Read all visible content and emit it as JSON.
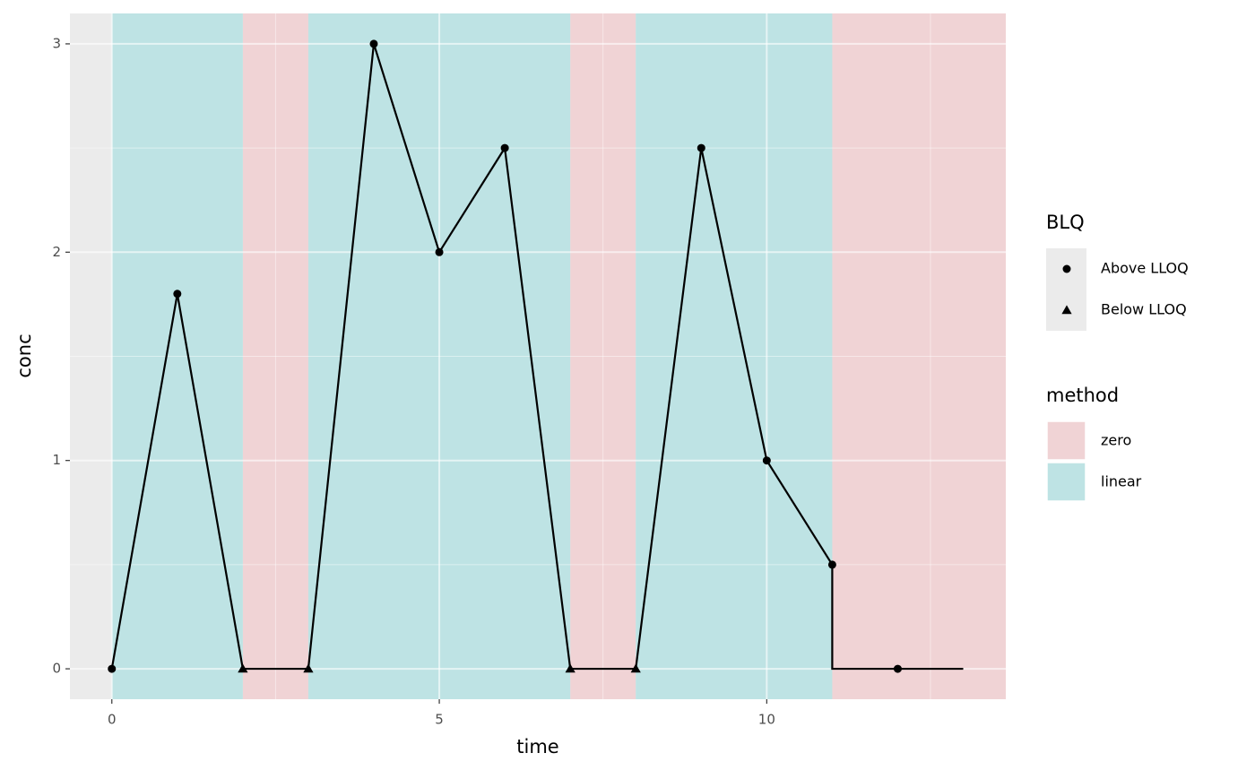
{
  "chart_data": {
    "type": "line",
    "xlabel": "time",
    "ylabel": "conc",
    "xlim": [
      -0.64,
      13.65
    ],
    "ylim": [
      -0.146,
      3.146
    ],
    "xticks": [
      0,
      5,
      10
    ],
    "yticks": [
      0,
      1,
      2,
      3
    ],
    "x_minor_ticks": [
      2.5,
      7.5,
      12.5
    ],
    "y_minor_ticks": [
      0.5,
      1.5,
      2.5
    ],
    "grid": true,
    "line": {
      "color": "#000000",
      "x": [
        0,
        1,
        2,
        3,
        4,
        5,
        6,
        7,
        8,
        9,
        10,
        11,
        11,
        12,
        13
      ],
      "values": [
        0,
        1.8,
        0,
        0,
        3,
        2,
        2.5,
        0,
        0,
        2.5,
        1,
        0.5,
        0,
        0,
        0
      ]
    },
    "shape_legend": {
      "title": "BLQ",
      "series": [
        {
          "name": "Above LLOQ",
          "shape": "circle",
          "color": "#000000",
          "x": [
            0,
            1,
            4,
            5,
            6,
            9,
            10,
            11,
            12
          ],
          "values": [
            0,
            1.8,
            3,
            2,
            2.5,
            2.5,
            1,
            0.5,
            0
          ]
        },
        {
          "name": "Below LLOQ",
          "shape": "triangle",
          "color": "#000000",
          "x": [
            2,
            3,
            7,
            8
          ],
          "values": [
            0,
            0,
            0,
            0
          ]
        }
      ]
    },
    "method_legend": {
      "title": "method",
      "entries": [
        {
          "name": "zero",
          "color": "#f0d3d5",
          "intervals": [
            [
              2,
              3
            ],
            [
              7,
              8
            ],
            [
              11,
              13.65
            ]
          ]
        },
        {
          "name": "linear",
          "color": "#bee3e4",
          "intervals": [
            [
              0,
              2
            ],
            [
              3,
              7
            ],
            [
              8,
              11
            ]
          ]
        }
      ]
    }
  }
}
